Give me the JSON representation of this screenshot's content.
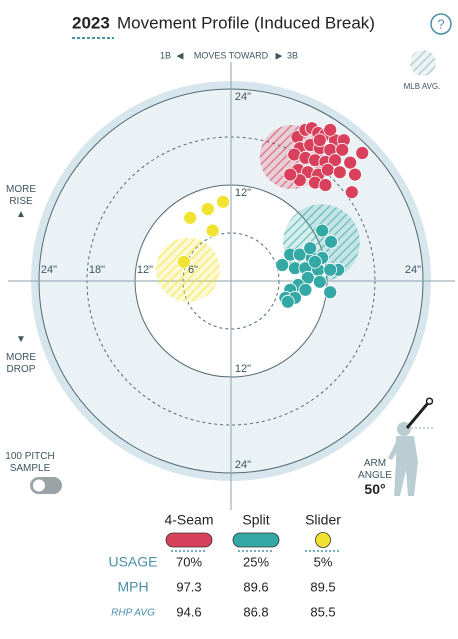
{
  "help_icon": "?",
  "chart_data": {
    "type": "scatter",
    "title_year": "2023",
    "title": "Movement Profile (Induced Break)",
    "direction": {
      "left": "1B",
      "middle": "MOVES TOWARD",
      "right": "3B"
    },
    "rise_label": "MORE RISE",
    "drop_label": "MORE DROP",
    "xlim": [
      -25,
      25
    ],
    "ylim": [
      -25,
      25
    ],
    "ticks": [
      {
        "value": 6,
        "label": "6\""
      },
      {
        "value": 12,
        "label": "12\""
      },
      {
        "value": 18,
        "label": "18\""
      },
      {
        "value": 24,
        "label": "24\""
      }
    ],
    "series": [
      {
        "name": "4-Seam",
        "color": "#d9405b",
        "x": [
          8.3,
          9.3,
          10.1,
          10.9,
          11.8,
          13.0,
          14.1,
          8.6,
          9.9,
          11.1,
          12.4,
          13.9,
          16.4,
          7.9,
          9.3,
          10.5,
          11.8,
          13.0,
          14.9,
          15.5,
          8.4,
          9.6,
          10.9,
          12.1,
          13.6,
          8.6,
          10.5,
          11.8,
          15.1,
          7.4,
          11.1,
          12.4
        ],
        "y": [
          18.0,
          18.9,
          19.1,
          18.5,
          18.3,
          17.6,
          17.6,
          16.6,
          17.0,
          16.6,
          16.4,
          16.4,
          16.0,
          15.8,
          15.4,
          15.1,
          14.9,
          15.1,
          14.8,
          13.3,
          13.9,
          13.6,
          13.3,
          13.9,
          13.6,
          12.6,
          12.3,
          12.0,
          11.1,
          13.3,
          17.6,
          18.9
        ]
      },
      {
        "name": "Split",
        "color": "#34a8a4",
        "x": [
          11.4,
          12.5,
          7.4,
          8.6,
          10.1,
          11.4,
          13.4,
          6.4,
          8.0,
          9.3,
          10.9,
          12.4,
          9.6,
          11.1,
          8.4,
          7.4,
          9.3,
          12.4,
          6.8,
          8.0,
          7.1,
          10.5,
          9.9
        ],
        "y": [
          6.3,
          4.9,
          3.3,
          3.3,
          2.9,
          2.9,
          1.4,
          2.0,
          1.6,
          1.6,
          1.4,
          1.4,
          0.4,
          -0.1,
          -0.5,
          -1.1,
          -1.1,
          -1.4,
          -2.1,
          -2.1,
          -2.6,
          2.4,
          4.1
        ]
      },
      {
        "name": "Slider",
        "color": "#f1e330",
        "x": [
          -5.1,
          -2.9,
          -1.0,
          -2.3,
          -5.9
        ],
        "y": [
          7.9,
          9.0,
          9.9,
          6.3,
          2.4
        ]
      }
    ],
    "mlb_avg": {
      "label": "MLB AVG.",
      "ellipses": [
        {
          "x": 7.6,
          "y": 15.5,
          "r": 4
        },
        {
          "x": 11.3,
          "y": 4.8,
          "r": 4.8
        },
        {
          "x": -5.4,
          "y": 1.4,
          "r": 4
        }
      ]
    },
    "sample_toggle": "100 PITCH SAMPLE",
    "arm_angle": {
      "label": "ARM ANGLE",
      "value": 50,
      "value_label": "50°"
    }
  },
  "stats": {
    "rows": [
      {
        "label": "USAGE",
        "values": [
          70,
          25,
          5
        ],
        "value_labels": [
          "70%",
          "25%",
          "5%"
        ]
      },
      {
        "label": "MPH",
        "values": [
          97.3,
          89.6,
          89.5
        ]
      },
      {
        "label": "RHP AVG",
        "values": [
          94.6,
          86.8,
          85.5
        ]
      }
    ]
  }
}
